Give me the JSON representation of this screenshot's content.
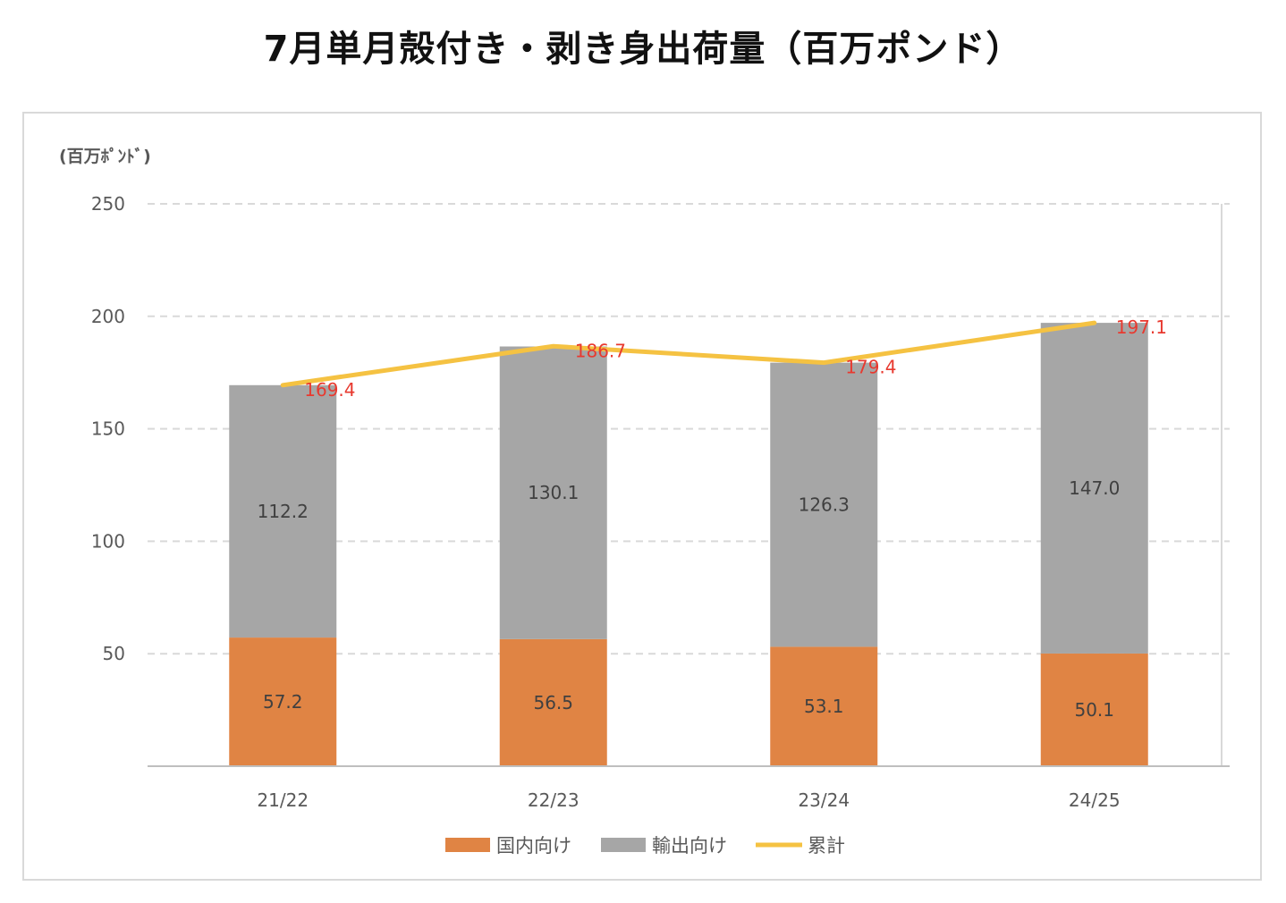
{
  "title": "7月単月殻付き・剥き身出荷量（百万ポンド）",
  "unit_label": "(百万ﾎﾟﾝﾄﾞ)",
  "colors": {
    "domestic": "#E08444",
    "export": "#A6A6A6",
    "total": "#F5C242",
    "total_label": "#E8392F"
  },
  "chart_data": {
    "type": "bar",
    "stacked": true,
    "categories": [
      "21/22",
      "22/23",
      "23/24",
      "24/25"
    ],
    "series": [
      {
        "name": "国内向け",
        "values": [
          57.2,
          56.5,
          53.1,
          50.1
        ]
      },
      {
        "name": "輸出向け",
        "values": [
          112.2,
          130.1,
          126.3,
          147.0
        ]
      }
    ],
    "line_series": {
      "name": "累計",
      "values": [
        169.4,
        186.7,
        179.4,
        197.1
      ]
    },
    "ylim": [
      0,
      250
    ],
    "yticks": [
      50,
      100,
      150,
      200,
      250
    ],
    "grid": true,
    "legend": "bottom"
  }
}
